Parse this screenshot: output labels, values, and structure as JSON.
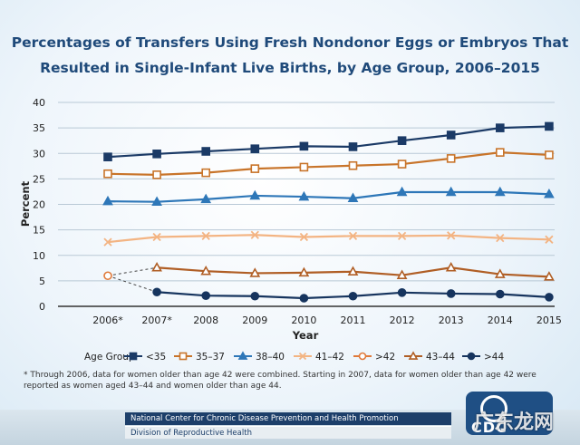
{
  "chart_data": {
    "type": "line",
    "title_line1": "Percentages of Transfers Using Fresh Nondonor Eggs or Embryos That",
    "title_line2": "Resulted in Single-Infant Live Births, by Age Group, 2006–2015",
    "xlabel": "Year",
    "ylabel": "Percent",
    "ylim": [
      0,
      40
    ],
    "yticks": [
      "0",
      "5",
      "10",
      "15",
      "20",
      "25",
      "30",
      "35",
      "40"
    ],
    "categories": [
      "2006*",
      "2007*",
      "2008",
      "2009",
      "2010",
      "2011",
      "2012",
      "2013",
      "2014",
      "2015"
    ],
    "legend_title": "Age Group:",
    "series": [
      {
        "name": "<35",
        "color": "#1b3a66",
        "marker": "square",
        "fill": true,
        "values": [
          29.3,
          29.9,
          30.4,
          30.9,
          31.4,
          31.3,
          32.5,
          33.6,
          35.0,
          35.3
        ]
      },
      {
        "name": "35–37",
        "color": "#c8742a",
        "marker": "square",
        "fill": false,
        "values": [
          26.0,
          25.8,
          26.2,
          27.0,
          27.3,
          27.6,
          27.9,
          29.0,
          30.2,
          29.7
        ]
      },
      {
        "name": "38–40",
        "color": "#2e77b8",
        "marker": "triangle",
        "fill": true,
        "values": [
          20.6,
          20.5,
          21.0,
          21.7,
          21.5,
          21.2,
          22.4,
          22.4,
          22.4,
          22.0
        ]
      },
      {
        "name": "41–42",
        "color": "#f3b483",
        "marker": "x",
        "fill": false,
        "values": [
          12.6,
          13.6,
          13.8,
          14.0,
          13.6,
          13.8,
          13.8,
          13.9,
          13.4,
          13.1
        ]
      },
      {
        "name": ">42",
        "color": "#e07a3a",
        "marker": "circle",
        "fill": false,
        "values": [
          6.0,
          null,
          null,
          null,
          null,
          null,
          null,
          null,
          null,
          null
        ]
      },
      {
        "name": "43–44",
        "color": "#b05e25",
        "marker": "triangle",
        "fill": false,
        "values": [
          null,
          7.6,
          6.9,
          6.5,
          6.6,
          6.8,
          6.1,
          7.6,
          6.3,
          5.8
        ]
      },
      {
        "name": ">44",
        "color": "#16345e",
        "marker": "circle",
        "fill": true,
        "values": [
          null,
          2.8,
          2.1,
          2.0,
          1.6,
          2.0,
          2.7,
          2.5,
          2.4,
          1.8
        ]
      }
    ]
  },
  "footnote": "* Through 2006, data for women older than age 42 were combined. Starting in 2007, data for women older than age 42 were reported as women aged 43–44 and women older than age 44.",
  "footer": {
    "line1": "National Center for Chronic Disease Prevention and Health Promotion",
    "line2": "Division of Reproductive Health"
  },
  "logo": {
    "text": "CDC"
  },
  "watermark": "广东龙网"
}
